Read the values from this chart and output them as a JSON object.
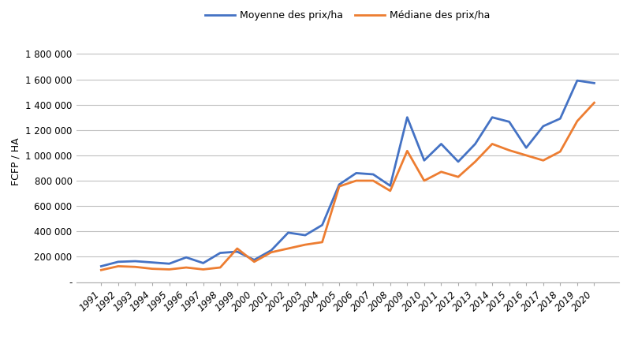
{
  "years": [
    1991,
    1992,
    1993,
    1994,
    1995,
    1996,
    1997,
    1998,
    1999,
    2000,
    2001,
    2002,
    2003,
    2004,
    2005,
    2006,
    2007,
    2008,
    2009,
    2010,
    2011,
    2012,
    2013,
    2014,
    2015,
    2016,
    2017,
    2018,
    2019,
    2020
  ],
  "moyenne": [
    125000,
    160000,
    165000,
    155000,
    145000,
    195000,
    150000,
    230000,
    240000,
    175000,
    250000,
    390000,
    370000,
    450000,
    770000,
    860000,
    850000,
    760000,
    1300000,
    960000,
    1090000,
    950000,
    1090000,
    1300000,
    1265000,
    1060000,
    1230000,
    1290000,
    1590000,
    1570000
  ],
  "mediane": [
    95000,
    125000,
    120000,
    105000,
    100000,
    115000,
    100000,
    115000,
    265000,
    160000,
    235000,
    265000,
    295000,
    315000,
    755000,
    800000,
    800000,
    720000,
    1035000,
    800000,
    870000,
    830000,
    950000,
    1090000,
    1040000,
    1000000,
    960000,
    1030000,
    1270000,
    1415000
  ],
  "moyenne_color": "#4472C4",
  "mediane_color": "#ED7D31",
  "ylabel": "FCFP / HA",
  "legend_moyenne": "Moyenne des prix/ha",
  "legend_mediane": "Médiane des prix/ha",
  "ylim": [
    0,
    1900000
  ],
  "yticks": [
    0,
    200000,
    400000,
    600000,
    800000,
    1000000,
    1200000,
    1400000,
    1600000,
    1800000
  ],
  "ytick_labels": [
    "-",
    "200 000",
    "400 000",
    "600 000",
    "800 000",
    "1 000 000",
    "1 200 000",
    "1 400 000",
    "1 600 000",
    "1 800 000"
  ],
  "line_width": 2.0,
  "bg_color": "#FFFFFF",
  "grid_color": "#C0C0C0",
  "axis_fontsize": 9,
  "tick_fontsize": 8.5,
  "legend_fontsize": 9
}
